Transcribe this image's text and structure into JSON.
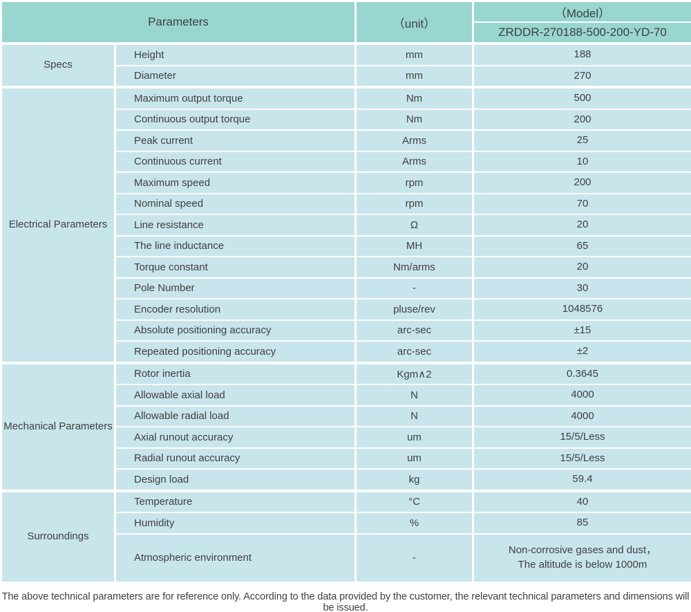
{
  "colors": {
    "header_bg": "#99d6d0",
    "section_bg": "#cbe7ea",
    "cell_bg": "#c8e5ec",
    "border": "#ffffff",
    "text": "#3f3f3f"
  },
  "header": {
    "parameters_label": "Parameters",
    "unit_label": "（unit）",
    "model_label": "（Model）",
    "model_value": "ZRDDR-270188-500-200-YD-70"
  },
  "sections": [
    {
      "label": "Specs",
      "rows": [
        {
          "name": "Height",
          "unit": "mm",
          "value": "188"
        },
        {
          "name": "Diameter",
          "unit": "mm",
          "value": "270"
        }
      ]
    },
    {
      "label": "Electrical Parameters",
      "rows": [
        {
          "name": "Maximum output torque",
          "unit": "Nm",
          "value": "500"
        },
        {
          "name": "Continuous output torque",
          "unit": "Nm",
          "value": "200"
        },
        {
          "name": "Peak current",
          "unit": "Arms",
          "value": "25"
        },
        {
          "name": "Continuous current",
          "unit": "Arms",
          "value": "10"
        },
        {
          "name": "Maximum speed",
          "unit": "rpm",
          "value": "200"
        },
        {
          "name": "Nominal speed",
          "unit": "rpm",
          "value": "70"
        },
        {
          "name": "Line resistance",
          "unit": "Ω",
          "value": "20"
        },
        {
          "name": "The line inductance",
          "unit": "MH",
          "value": "65"
        },
        {
          "name": "Torque constant",
          "unit": "Nm/arms",
          "value": "20"
        },
        {
          "name": "Pole Number",
          "unit": "-",
          "value": "30"
        },
        {
          "name": "Encoder resolution",
          "unit": "pluse/rev",
          "value": "1048576"
        },
        {
          "name": "Absolute positioning accuracy",
          "unit": "arc-sec",
          "value": "±15"
        },
        {
          "name": "Repeated positioning accuracy",
          "unit": "arc-sec",
          "value": "±2"
        }
      ]
    },
    {
      "label": "Mechanical Parameters",
      "rows": [
        {
          "name": "Rotor inertia",
          "unit": "Kgm∧2",
          "value": "0.3645"
        },
        {
          "name": "Allowable axial load",
          "unit": "N",
          "value": "4000"
        },
        {
          "name": "Allowable radial load",
          "unit": "N",
          "value": "4000"
        },
        {
          "name": "Axial runout accuracy",
          "unit": "um",
          "value": "15/5/Less"
        },
        {
          "name": "Radial runout accuracy",
          "unit": "um",
          "value": "15/5/Less"
        },
        {
          "name": "Design load",
          "unit": "kg",
          "value": "59.4"
        }
      ]
    },
    {
      "label": "Surroundings",
      "rows": [
        {
          "name": "Temperature",
          "unit": "°C",
          "value": "40"
        },
        {
          "name": "Humidity",
          "unit": "%",
          "value": "85"
        },
        {
          "name": "Atmospheric environment",
          "unit": "-",
          "value": "Non-corrosive gases and dust，\nThe altitude is below 1000m",
          "tall": true
        }
      ]
    }
  ],
  "footer": {
    "note": "The above technical parameters are for reference only. According to the data provided by the customer, the relevant technical parameters and dimensions will be issued."
  }
}
